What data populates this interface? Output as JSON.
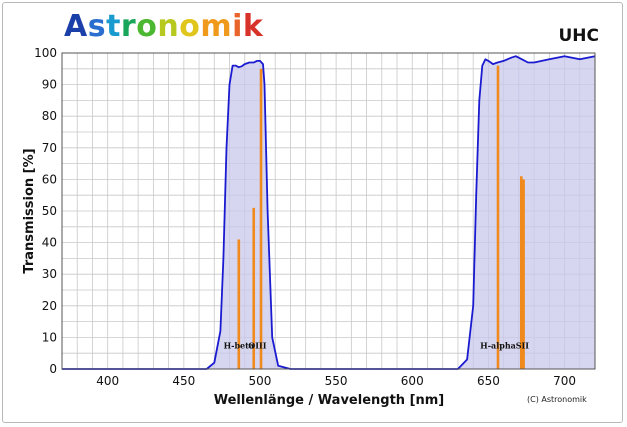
{
  "brand": {
    "logo_text": "Astronomik",
    "logo_colors": [
      "#1b3fa8",
      "#2a6fd0",
      "#1a9bd0",
      "#19a55a",
      "#4cb832",
      "#b7c81e",
      "#e0c51a",
      "#ef9a1c",
      "#e8642a",
      "#d8332a"
    ],
    "filter_name": "UHC",
    "copyright": "(C) Astronomik"
  },
  "chart_data": {
    "type": "line",
    "title": "UHC",
    "xlabel": "Wellenlänge / Wavelength [nm]",
    "ylabel": "Transmission [%]",
    "xlim": [
      370,
      720
    ],
    "ylim": [
      0,
      100
    ],
    "x_ticks": [
      400,
      450,
      500,
      550,
      600,
      650,
      700
    ],
    "y_ticks": [
      0,
      10,
      20,
      30,
      40,
      50,
      60,
      70,
      80,
      90,
      100
    ],
    "grid": true,
    "colors": {
      "curve": "#1a1ad0",
      "fill": "#c8c8ec",
      "lines": "#f08a1c",
      "grid": "#c8c8c8"
    },
    "series": [
      {
        "x": [
          370,
          465,
          470,
          474,
          476,
          478,
          480,
          482,
          484,
          486,
          488,
          490,
          493,
          496,
          498,
          500,
          502,
          503,
          505,
          508,
          512,
          520,
          560,
          600,
          630,
          636,
          640,
          642,
          644,
          646,
          648,
          650,
          653,
          656,
          660,
          665,
          668,
          672,
          676,
          680,
          685,
          690,
          695,
          700,
          705,
          710,
          715,
          720
        ],
        "y": [
          0,
          0,
          2,
          12,
          35,
          70,
          90,
          96,
          96,
          95.5,
          95.8,
          96.5,
          97,
          97,
          97.5,
          97.5,
          96.5,
          90,
          50,
          10,
          1,
          0,
          0,
          0,
          0,
          3,
          20,
          55,
          85,
          96,
          98,
          97.5,
          96.5,
          97,
          97.5,
          98.5,
          99,
          98,
          97,
          97,
          97.5,
          98,
          98.5,
          99,
          98.5,
          98,
          98.5,
          99
        ]
      }
    ],
    "emission_lines": [
      {
        "name": "H-beta",
        "x": 486.1,
        "y": 41
      },
      {
        "name": "OIII",
        "x": 495.9,
        "y": 51
      },
      {
        "name": "OIII",
        "x": 500.7,
        "y": 95
      },
      {
        "name": "H-alpha",
        "x": 656.3,
        "y": 96
      },
      {
        "name": "SII",
        "x": 671.6,
        "y": 61
      },
      {
        "name": "SII",
        "x": 673.1,
        "y": 60
      }
    ],
    "line_labels": [
      {
        "text": "H-beta",
        "x": 486.1
      },
      {
        "text": "OIII",
        "x": 498.3
      },
      {
        "text": "H-alpha",
        "x": 656.3
      },
      {
        "text": "SII",
        "x": 672.3
      }
    ]
  }
}
